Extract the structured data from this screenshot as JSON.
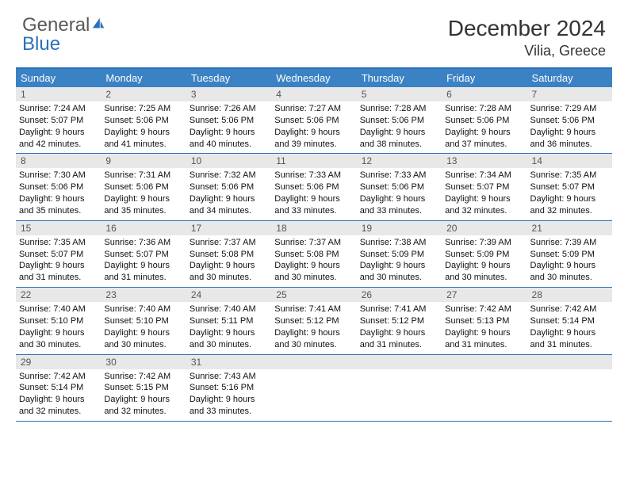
{
  "brand": {
    "word1": "General",
    "word2": "Blue"
  },
  "title": "December 2024",
  "location": "Vilia, Greece",
  "colors": {
    "header_bar": "#3b82c4",
    "border": "#2a71b8",
    "daynum_bg": "#e8e8e8",
    "logo_gray": "#5a5a5a",
    "logo_blue": "#2a71b8"
  },
  "daysOfWeek": [
    "Sunday",
    "Monday",
    "Tuesday",
    "Wednesday",
    "Thursday",
    "Friday",
    "Saturday"
  ],
  "weeks": [
    [
      {
        "n": "1",
        "sunrise": "7:24 AM",
        "sunset": "5:07 PM",
        "dl": "9 hours and 42 minutes."
      },
      {
        "n": "2",
        "sunrise": "7:25 AM",
        "sunset": "5:06 PM",
        "dl": "9 hours and 41 minutes."
      },
      {
        "n": "3",
        "sunrise": "7:26 AM",
        "sunset": "5:06 PM",
        "dl": "9 hours and 40 minutes."
      },
      {
        "n": "4",
        "sunrise": "7:27 AM",
        "sunset": "5:06 PM",
        "dl": "9 hours and 39 minutes."
      },
      {
        "n": "5",
        "sunrise": "7:28 AM",
        "sunset": "5:06 PM",
        "dl": "9 hours and 38 minutes."
      },
      {
        "n": "6",
        "sunrise": "7:28 AM",
        "sunset": "5:06 PM",
        "dl": "9 hours and 37 minutes."
      },
      {
        "n": "7",
        "sunrise": "7:29 AM",
        "sunset": "5:06 PM",
        "dl": "9 hours and 36 minutes."
      }
    ],
    [
      {
        "n": "8",
        "sunrise": "7:30 AM",
        "sunset": "5:06 PM",
        "dl": "9 hours and 35 minutes."
      },
      {
        "n": "9",
        "sunrise": "7:31 AM",
        "sunset": "5:06 PM",
        "dl": "9 hours and 35 minutes."
      },
      {
        "n": "10",
        "sunrise": "7:32 AM",
        "sunset": "5:06 PM",
        "dl": "9 hours and 34 minutes."
      },
      {
        "n": "11",
        "sunrise": "7:33 AM",
        "sunset": "5:06 PM",
        "dl": "9 hours and 33 minutes."
      },
      {
        "n": "12",
        "sunrise": "7:33 AM",
        "sunset": "5:06 PM",
        "dl": "9 hours and 33 minutes."
      },
      {
        "n": "13",
        "sunrise": "7:34 AM",
        "sunset": "5:07 PM",
        "dl": "9 hours and 32 minutes."
      },
      {
        "n": "14",
        "sunrise": "7:35 AM",
        "sunset": "5:07 PM",
        "dl": "9 hours and 32 minutes."
      }
    ],
    [
      {
        "n": "15",
        "sunrise": "7:35 AM",
        "sunset": "5:07 PM",
        "dl": "9 hours and 31 minutes."
      },
      {
        "n": "16",
        "sunrise": "7:36 AM",
        "sunset": "5:07 PM",
        "dl": "9 hours and 31 minutes."
      },
      {
        "n": "17",
        "sunrise": "7:37 AM",
        "sunset": "5:08 PM",
        "dl": "9 hours and 30 minutes."
      },
      {
        "n": "18",
        "sunrise": "7:37 AM",
        "sunset": "5:08 PM",
        "dl": "9 hours and 30 minutes."
      },
      {
        "n": "19",
        "sunrise": "7:38 AM",
        "sunset": "5:09 PM",
        "dl": "9 hours and 30 minutes."
      },
      {
        "n": "20",
        "sunrise": "7:39 AM",
        "sunset": "5:09 PM",
        "dl": "9 hours and 30 minutes."
      },
      {
        "n": "21",
        "sunrise": "7:39 AM",
        "sunset": "5:09 PM",
        "dl": "9 hours and 30 minutes."
      }
    ],
    [
      {
        "n": "22",
        "sunrise": "7:40 AM",
        "sunset": "5:10 PM",
        "dl": "9 hours and 30 minutes."
      },
      {
        "n": "23",
        "sunrise": "7:40 AM",
        "sunset": "5:10 PM",
        "dl": "9 hours and 30 minutes."
      },
      {
        "n": "24",
        "sunrise": "7:40 AM",
        "sunset": "5:11 PM",
        "dl": "9 hours and 30 minutes."
      },
      {
        "n": "25",
        "sunrise": "7:41 AM",
        "sunset": "5:12 PM",
        "dl": "9 hours and 30 minutes."
      },
      {
        "n": "26",
        "sunrise": "7:41 AM",
        "sunset": "5:12 PM",
        "dl": "9 hours and 31 minutes."
      },
      {
        "n": "27",
        "sunrise": "7:42 AM",
        "sunset": "5:13 PM",
        "dl": "9 hours and 31 minutes."
      },
      {
        "n": "28",
        "sunrise": "7:42 AM",
        "sunset": "5:14 PM",
        "dl": "9 hours and 31 minutes."
      }
    ],
    [
      {
        "n": "29",
        "sunrise": "7:42 AM",
        "sunset": "5:14 PM",
        "dl": "9 hours and 32 minutes."
      },
      {
        "n": "30",
        "sunrise": "7:42 AM",
        "sunset": "5:15 PM",
        "dl": "9 hours and 32 minutes."
      },
      {
        "n": "31",
        "sunrise": "7:43 AM",
        "sunset": "5:16 PM",
        "dl": "9 hours and 33 minutes."
      },
      null,
      null,
      null,
      null
    ]
  ],
  "labels": {
    "sunrise": "Sunrise:",
    "sunset": "Sunset:",
    "daylight": "Daylight:"
  }
}
